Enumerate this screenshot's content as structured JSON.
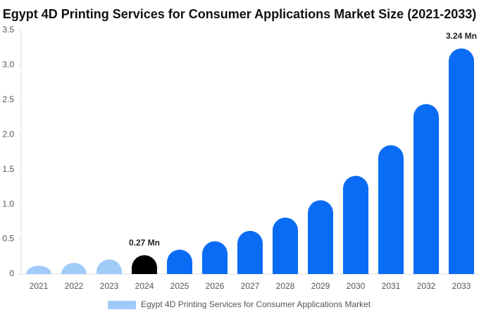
{
  "chart_data": {
    "type": "bar",
    "title": "Egypt 4D Printing Services for Consumer Applications Market Size (2021-2033)",
    "categories": [
      "2021",
      "2022",
      "2023",
      "2024",
      "2025",
      "2026",
      "2027",
      "2028",
      "2029",
      "2030",
      "2031",
      "2032",
      "2033"
    ],
    "series": [
      {
        "name": "Egypt 4D Printing Services for Consumer Applications Market",
        "color": "#a0cbf9",
        "values": [
          0.12,
          0.16,
          0.21,
          0.27,
          0.35,
          0.47,
          0.62,
          0.81,
          1.06,
          1.41,
          1.85,
          2.44,
          3.24
        ],
        "colors": [
          "#a0cbf9",
          "#a0cbf9",
          "#a0cbf9",
          "#000000",
          "#0a6cf5",
          "#0a6cf5",
          "#0a6cf5",
          "#0a6cf5",
          "#0a6cf5",
          "#0a6cf5",
          "#0a6cf5",
          "#0a6cf5",
          "#0a6cf5"
        ],
        "value_labels": [
          null,
          null,
          null,
          "0.27 Mn",
          null,
          null,
          null,
          null,
          null,
          null,
          null,
          null,
          "3.24 Mn"
        ]
      }
    ],
    "ylim": [
      0,
      3.5
    ],
    "yticks": [
      0,
      0.5,
      {
        "value": 1,
        "label": "1.0"
      },
      1.5,
      {
        "value": 2,
        "label": "2.0"
      },
      2.5,
      {
        "value": 3,
        "label": "3.0"
      },
      3.5
    ],
    "grid": false
  }
}
